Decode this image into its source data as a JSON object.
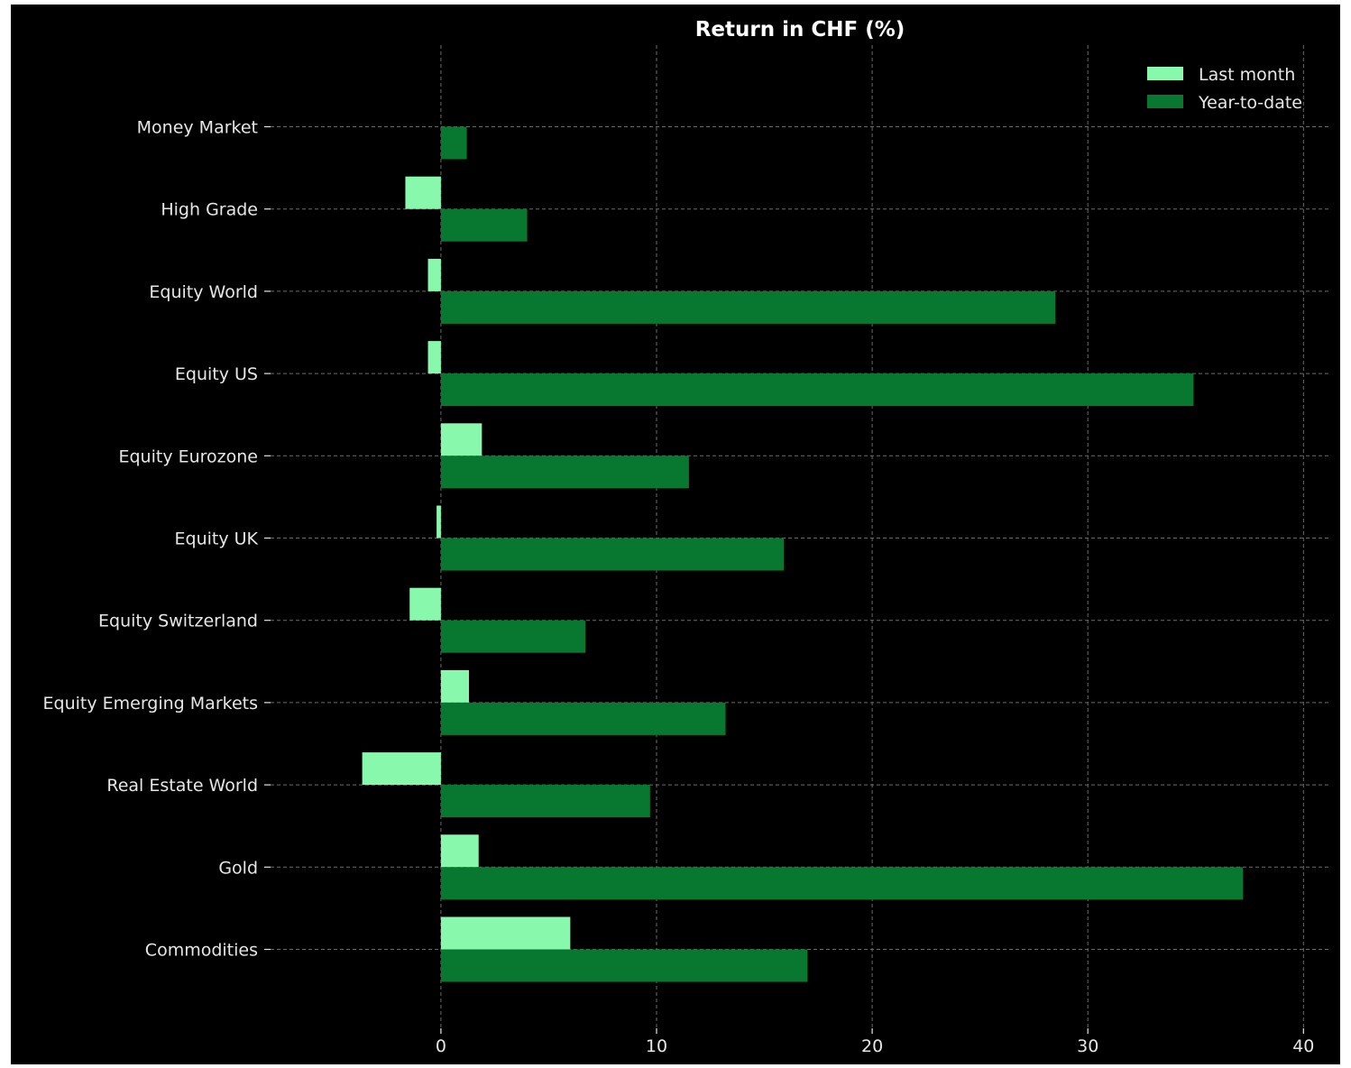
{
  "chart_data": {
    "type": "bar",
    "orientation": "horizontal",
    "title": "Return in CHF (%)",
    "xlabel": "",
    "ylabel": "",
    "categories": [
      "Money Market",
      "High Grade",
      "Equity World",
      "Equity US",
      "Equity Eurozone",
      "Equity UK",
      "Equity Switzerland",
      "Equity Emerging Markets",
      "Real Estate World",
      "Gold",
      "Commodities"
    ],
    "series": [
      {
        "name": "Last month",
        "color": "#88f8ac",
        "values": [
          0.0,
          -1.65,
          -0.6,
          -0.6,
          1.9,
          -0.2,
          -1.45,
          1.3,
          -3.65,
          1.75,
          6.0
        ]
      },
      {
        "name": "Year-to-date",
        "color": "#087830",
        "values": [
          1.2,
          4.0,
          28.5,
          34.9,
          11.5,
          15.9,
          6.7,
          13.2,
          9.7,
          37.2,
          17.0
        ]
      }
    ],
    "xlim": [
      -7.9,
      41.2
    ],
    "xticks": [
      "0",
      "10",
      "20",
      "30",
      "40"
    ],
    "grid": true,
    "legend_position": "top-right",
    "background": "#000000"
  }
}
